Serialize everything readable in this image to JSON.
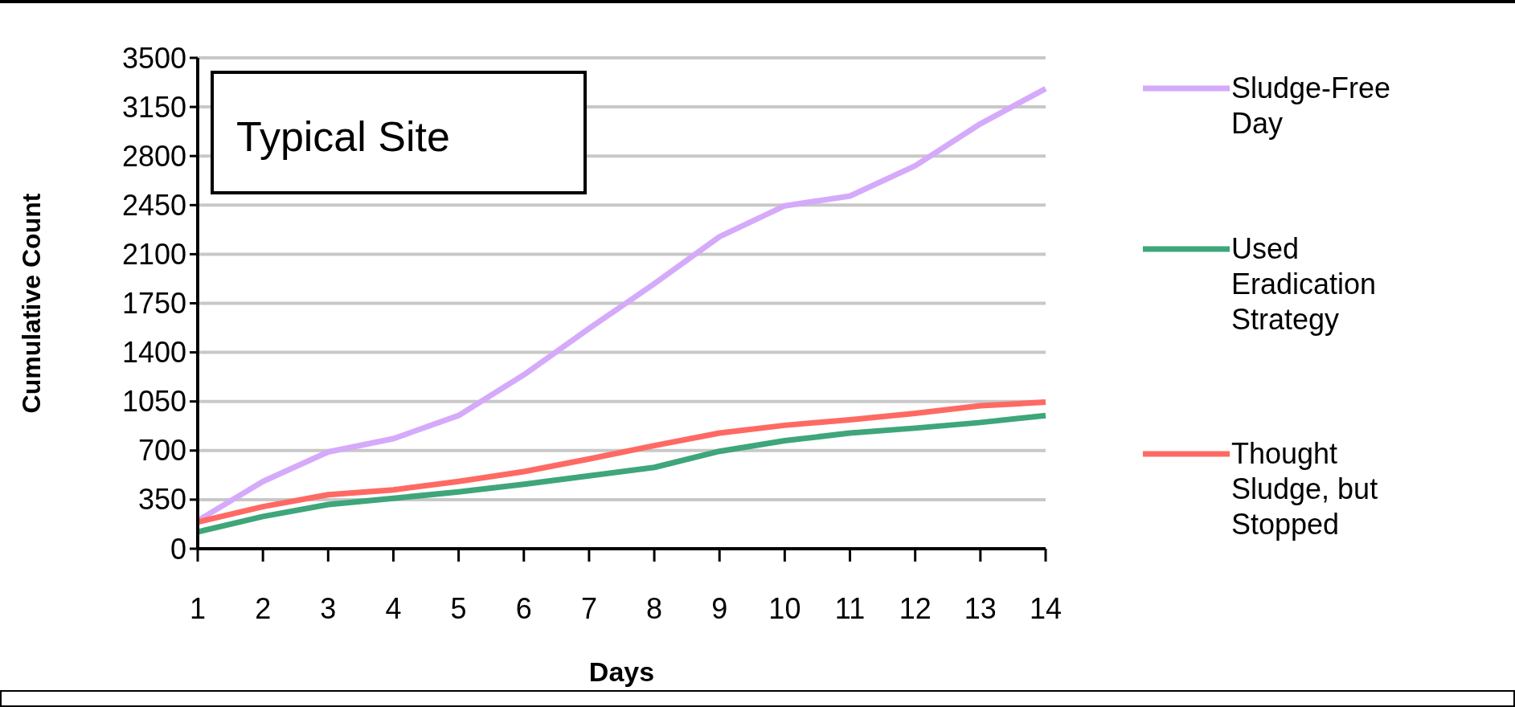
{
  "chart_data": {
    "type": "line",
    "xlabel": "Days",
    "ylabel": "Cumulative Count",
    "annotations": [
      "Typical Site"
    ],
    "x": [
      1,
      2,
      3,
      4,
      5,
      6,
      7,
      8,
      9,
      10,
      11,
      12,
      13,
      14
    ],
    "xlim": [
      1,
      14
    ],
    "xticks": [
      1,
      2,
      3,
      4,
      5,
      6,
      7,
      8,
      9,
      10,
      11,
      12,
      13,
      14
    ],
    "ylim": [
      0,
      3500
    ],
    "yticks": [
      0,
      350,
      700,
      1050,
      1400,
      1750,
      2100,
      2450,
      2800,
      3150,
      3500
    ],
    "grid": "y",
    "legend": "right",
    "marker": "none",
    "line_style": "solid",
    "series": [
      {
        "name": "Sludge-Free Day",
        "color": "#d5aafa",
        "values": [
          200,
          480,
          690,
          785,
          950,
          1240,
          1570,
          1890,
          2225,
          2445,
          2515,
          2730,
          3030,
          3280
        ]
      },
      {
        "name": "Used Eradication Strategy",
        "color": "#3ea67a",
        "values": [
          120,
          230,
          315,
          360,
          405,
          460,
          520,
          580,
          695,
          770,
          825,
          860,
          900,
          950
        ]
      },
      {
        "name": "Thought Sludge, but Stopped",
        "color": "#fe6a63",
        "values": [
          190,
          300,
          385,
          420,
          480,
          550,
          640,
          735,
          825,
          880,
          920,
          965,
          1020,
          1045
        ]
      }
    ]
  }
}
